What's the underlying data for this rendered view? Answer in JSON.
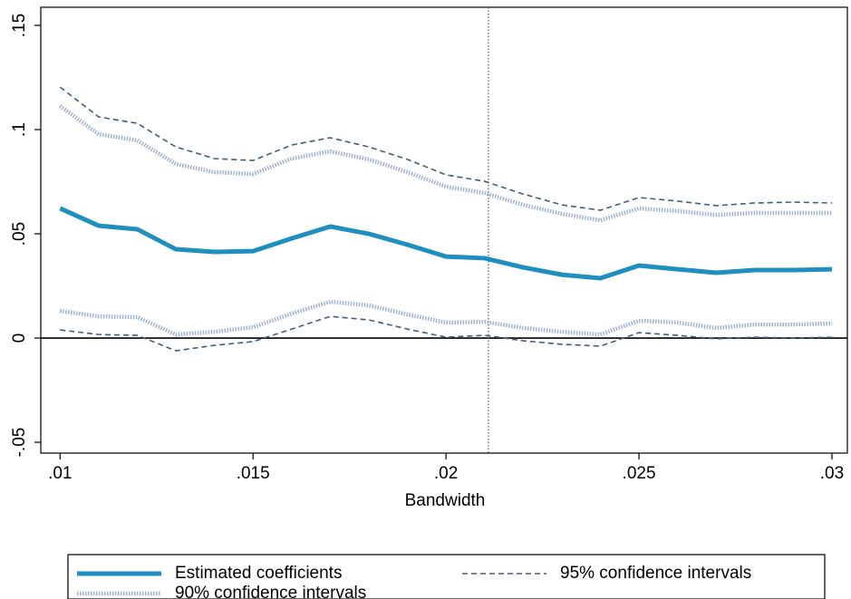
{
  "chart_data": {
    "type": "line",
    "x_label": "Bandwidth",
    "x": [
      0.01,
      0.011,
      0.012,
      0.013,
      0.014,
      0.015,
      0.016,
      0.017,
      0.018,
      0.019,
      0.02,
      0.021,
      0.022,
      0.023,
      0.024,
      0.025,
      0.026,
      0.027,
      0.028,
      0.029,
      0.03
    ],
    "series": [
      {
        "name": "Estimated coefficients",
        "color": "#1f8fbf",
        "line_style": "solid",
        "line_width": 5,
        "values": [
          0.0622,
          0.0539,
          0.0522,
          0.0426,
          0.0413,
          0.0417,
          0.0478,
          0.0535,
          0.05,
          0.0448,
          0.0391,
          0.0383,
          0.0339,
          0.0304,
          0.0287,
          0.0348,
          0.033,
          0.0313,
          0.0326,
          0.0326,
          0.033
        ]
      },
      {
        "name": "95% confidence intervals",
        "color": "#3d5f80",
        "line_style": "dash",
        "line_width": 1.6,
        "values": [
          0.1204,
          0.1061,
          0.103,
          0.0917,
          0.0861,
          0.0852,
          0.0926,
          0.0961,
          0.0917,
          0.0857,
          0.0783,
          0.0752,
          0.0691,
          0.0639,
          0.0613,
          0.0674,
          0.0657,
          0.0635,
          0.0648,
          0.0652,
          0.0648
        ]
      },
      {
        "name": "90% confidence intervals",
        "color": "#9db3d0",
        "line_style": "dot",
        "line_width": 4.5,
        "values": [
          0.1113,
          0.0978,
          0.0948,
          0.0835,
          0.0796,
          0.0787,
          0.0861,
          0.0896,
          0.0857,
          0.0796,
          0.0726,
          0.0696,
          0.0639,
          0.0596,
          0.0565,
          0.0622,
          0.0609,
          0.0591,
          0.06,
          0.06,
          0.06
        ]
      },
      {
        "name": "95% confidence intervals",
        "color": "#3d5f80",
        "line_style": "dash",
        "line_width": 1.6,
        "legend": false,
        "values": [
          0.0039,
          0.0017,
          0.0013,
          -0.0061,
          -0.0035,
          -0.0017,
          0.0043,
          0.0104,
          0.0087,
          0.0043,
          0.0004,
          0.0013,
          -0.0013,
          -0.003,
          -0.0039,
          0.0026,
          0.0013,
          -0.0004,
          0.0004,
          0,
          0.0004
        ]
      },
      {
        "name": "90% confidence intervals",
        "color": "#9db3d0",
        "line_style": "dot",
        "line_width": 4.5,
        "legend": false,
        "values": [
          0.013,
          0.0104,
          0.01,
          0.0017,
          0.003,
          0.0052,
          0.0117,
          0.0174,
          0.0157,
          0.0113,
          0.0074,
          0.0078,
          0.0048,
          0.003,
          0.0017,
          0.0083,
          0.0074,
          0.0048,
          0.0065,
          0.0065,
          0.007
        ]
      }
    ],
    "xlim": [
      0.0095,
      0.0304
    ],
    "ylim": [
      -0.0552,
      0.1587
    ],
    "xticks": [
      {
        "value": 0.01,
        "label": ".01"
      },
      {
        "value": 0.015,
        "label": ".015"
      },
      {
        "value": 0.02,
        "label": ".02"
      },
      {
        "value": 0.025,
        "label": ".025"
      },
      {
        "value": 0.03,
        "label": ".03"
      }
    ],
    "yticks": [
      {
        "value": -0.05,
        "label": "-.05"
      },
      0,
      {
        "value": 0.05,
        "label": ".05"
      },
      {
        "value": 0.1,
        "label": ".1"
      },
      {
        "value": 0.15,
        "label": ".15"
      }
    ],
    "xline": 0.0211,
    "yline": 0,
    "grid": false,
    "legend_position": "bottom"
  }
}
